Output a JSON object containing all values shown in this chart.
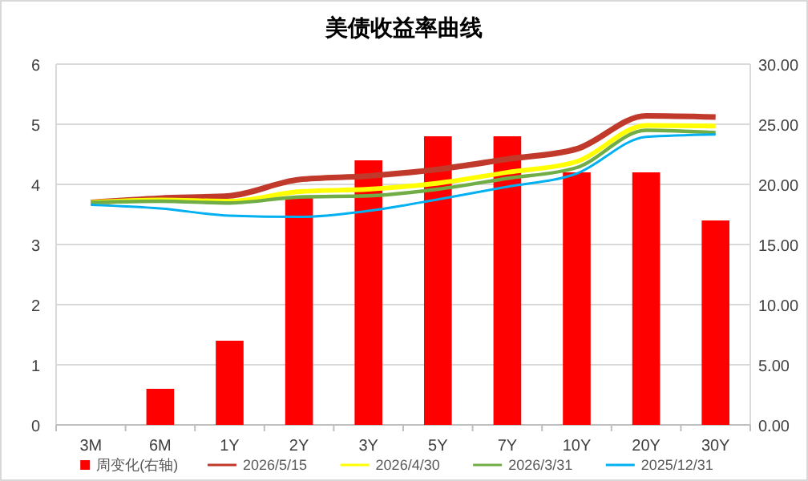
{
  "chart_data": {
    "type": "bar",
    "title": "美债收益率曲线",
    "categories": [
      "3M",
      "6M",
      "1Y",
      "2Y",
      "3Y",
      "5Y",
      "7Y",
      "10Y",
      "20Y",
      "30Y"
    ],
    "series": [
      {
        "name": "周变化(右轴)",
        "axis": "y2",
        "color": "#ff0000",
        "values": [
          0,
          3,
          7,
          19,
          22,
          24,
          24,
          21,
          21,
          17
        ]
      },
      {
        "name": "2026/5/15",
        "type": "line",
        "color": "#c0392b",
        "values": [
          3.7,
          3.77,
          3.81,
          4.08,
          4.14,
          4.25,
          4.42,
          4.59,
          5.14,
          5.12
        ]
      },
      {
        "name": "2026/4/30",
        "type": "line",
        "color": "#ffff00",
        "values": [
          3.7,
          3.74,
          3.72,
          3.88,
          3.92,
          4.02,
          4.2,
          4.38,
          4.98,
          4.97
        ]
      },
      {
        "name": "2026/3/31",
        "type": "line",
        "color": "#70ad47",
        "values": [
          3.7,
          3.72,
          3.69,
          3.79,
          3.81,
          3.92,
          4.1,
          4.28,
          4.9,
          4.86
        ]
      },
      {
        "name": "2025/12/31",
        "type": "line",
        "color": "#00b0f0",
        "values": [
          3.66,
          3.6,
          3.48,
          3.46,
          3.56,
          3.75,
          3.96,
          4.18,
          4.79,
          4.83
        ]
      }
    ],
    "ylim": [
      0,
      6
    ],
    "yticks": [
      0,
      1,
      2,
      3,
      4,
      5,
      6
    ],
    "y2lim": [
      0,
      30
    ],
    "y2ticks": [
      {
        "value": 0,
        "label": "0.00"
      },
      {
        "value": 5,
        "label": "5.00"
      },
      {
        "value": 10,
        "label": "10.00"
      },
      {
        "value": 15,
        "label": "15.00"
      },
      {
        "value": 20,
        "label": "20.00"
      },
      {
        "value": 25,
        "label": "25.00"
      },
      {
        "value": 30,
        "label": "30.00"
      }
    ],
    "grid": "y",
    "legend": "bottom",
    "line_style": "solid",
    "marker": "none"
  }
}
